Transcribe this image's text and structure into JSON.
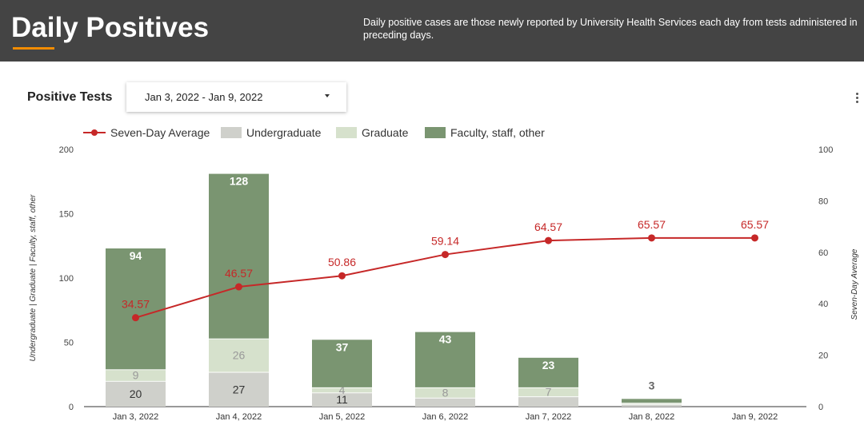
{
  "header": {
    "title": "Daily Positives",
    "description": "Daily positive cases are those newly reported by University Health Services each day from tests administered in preceding days."
  },
  "panel": {
    "title": "Positive Tests",
    "date_range": "Jan 3, 2022 - Jan 9, 2022"
  },
  "colors": {
    "undergraduate": "#cfd0cb",
    "graduate": "#d6e1cc",
    "faculty": "#7a9571",
    "average": "#c62828",
    "header_bg": "#444444",
    "accent": "#f28c00"
  },
  "chart_data": {
    "type": "bar",
    "stacked": true,
    "categories": [
      "Jan 3, 2022",
      "Jan 4, 2022",
      "Jan 5, 2022",
      "Jan 6, 2022",
      "Jan 7, 2022",
      "Jan 8, 2022",
      "Jan 9, 2022"
    ],
    "series": [
      {
        "name": "Undergraduate",
        "values": [
          20,
          27,
          11,
          7,
          8,
          2,
          0
        ],
        "labels": [
          "20",
          "27",
          "11",
          "",
          "",
          "",
          ""
        ]
      },
      {
        "name": "Graduate",
        "values": [
          9,
          26,
          4,
          8,
          7,
          1,
          0
        ],
        "labels": [
          "9",
          "26",
          "4",
          "8",
          "7",
          "",
          ""
        ]
      },
      {
        "name": "Faculty, staff, other",
        "values": [
          94,
          128,
          37,
          43,
          23,
          3,
          0
        ],
        "labels": [
          "94",
          "128",
          "37",
          "43",
          "23",
          "3",
          ""
        ]
      }
    ],
    "line_series": {
      "name": "Seven-Day Average",
      "axis": "right",
      "values": [
        34.57,
        46.57,
        50.86,
        59.14,
        64.57,
        65.57,
        65.57
      ],
      "labels": [
        "34.57",
        "46.57",
        "50.86",
        "59.14",
        "64.57",
        "65.57",
        "65.57"
      ]
    },
    "legend": [
      "Seven-Day Average",
      "Undergraduate",
      "Graduate",
      "Faculty, staff, other"
    ],
    "legend_position": "top-left",
    "ylabel": "Undergraduate | Graduate | Faculty, staff, other",
    "y2label": "Seven-Day Average",
    "ylim": [
      0,
      200
    ],
    "y2lim": [
      0,
      100
    ],
    "yticks": [
      "0",
      "50",
      "100",
      "150",
      "200"
    ],
    "y2ticks": [
      "0",
      "20",
      "40",
      "60",
      "80",
      "100"
    ],
    "grid": false
  }
}
